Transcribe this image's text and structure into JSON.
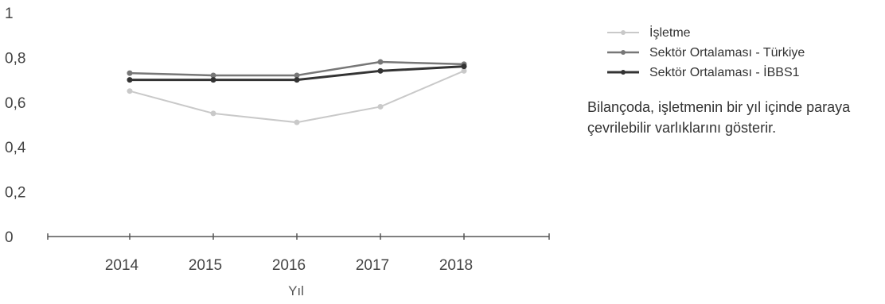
{
  "chart_data": {
    "type": "line",
    "x": [
      "2014",
      "2015",
      "2016",
      "2017",
      "2018"
    ],
    "xlabel": "Yıl",
    "ylabel": "",
    "ylim": [
      0,
      1
    ],
    "y_ticks": [
      "0",
      "0,2",
      "0,4",
      "0,6",
      "0,8",
      "1"
    ],
    "grid": false,
    "legend_position": "top-right",
    "series": [
      {
        "name": "İşletme",
        "values": [
          0.65,
          0.55,
          0.51,
          0.58,
          0.74
        ],
        "color": "#c9c9c9"
      },
      {
        "name": "Sektör Ortalaması - Türkiye",
        "values": [
          0.73,
          0.72,
          0.72,
          0.78,
          0.77
        ],
        "color": "#777777"
      },
      {
        "name": "Sektör Ortalaması - İBBS1",
        "values": [
          0.7,
          0.7,
          0.7,
          0.74,
          0.76
        ],
        "color": "#333333"
      }
    ]
  },
  "note": "Bilançoda, işletmenin bir yıl içinde paraya çevrilebilir varlıklarını gösterir."
}
